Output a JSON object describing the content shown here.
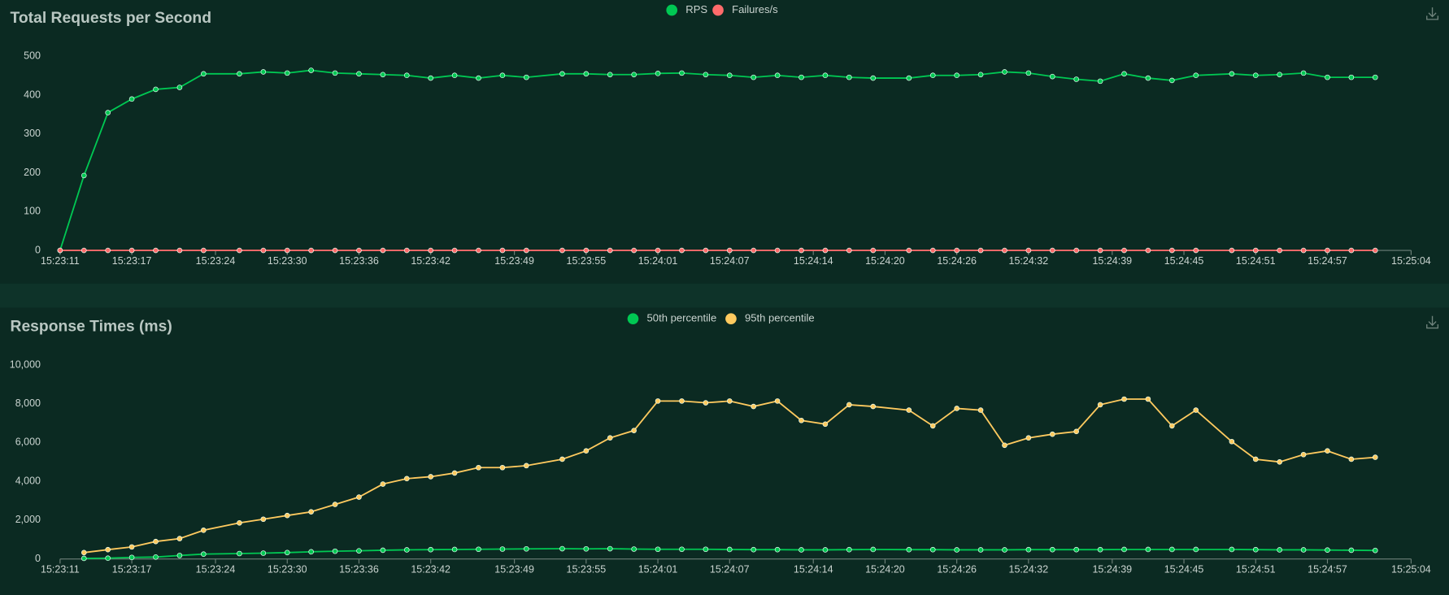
{
  "chart_data": [
    {
      "type": "line",
      "title": "Total Requests per Second",
      "x": [
        "15:23:11",
        "15:23:13",
        "15:23:15",
        "15:23:17",
        "15:23:19",
        "15:23:21",
        "15:23:23",
        "15:23:26",
        "15:23:28",
        "15:23:30",
        "15:23:32",
        "15:23:34",
        "15:23:36",
        "15:23:38",
        "15:23:40",
        "15:23:42",
        "15:23:44",
        "15:23:46",
        "15:23:48",
        "15:23:50",
        "15:23:53",
        "15:23:55",
        "15:23:57",
        "15:23:59",
        "15:24:01",
        "15:24:03",
        "15:24:05",
        "15:24:07",
        "15:24:09",
        "15:24:11",
        "15:24:13",
        "15:24:15",
        "15:24:17",
        "15:24:19",
        "15:24:22",
        "15:24:24",
        "15:24:26",
        "15:24:28",
        "15:24:30",
        "15:24:32",
        "15:24:34",
        "15:24:36",
        "15:24:38",
        "15:24:40",
        "15:24:42",
        "15:24:44",
        "15:24:46",
        "15:24:49",
        "15:24:51",
        "15:24:53",
        "15:24:55",
        "15:24:57",
        "15:24:59",
        "15:25:01"
      ],
      "xlim": [
        "15:23:11",
        "15:25:04"
      ],
      "xticks": [
        "15:23:11",
        "15:23:17",
        "15:23:24",
        "15:23:30",
        "15:23:36",
        "15:23:42",
        "15:23:49",
        "15:23:55",
        "15:24:01",
        "15:24:07",
        "15:24:14",
        "15:24:20",
        "15:24:26",
        "15:24:32",
        "15:24:39",
        "15:24:45",
        "15:24:51",
        "15:24:57",
        "15:25:04"
      ],
      "ylim": [
        0,
        500
      ],
      "yticks": [
        0,
        100,
        200,
        300,
        400,
        500
      ],
      "grid": false,
      "series": [
        {
          "name": "RPS",
          "color": "#00c853",
          "values": [
            0,
            193,
            355,
            390,
            415,
            420,
            455,
            455,
            460,
            457,
            464,
            457,
            455,
            453,
            451,
            444,
            451,
            444,
            451,
            446,
            455,
            455,
            453,
            453,
            456,
            457,
            453,
            451,
            446,
            451,
            446,
            451,
            446,
            444,
            444,
            451,
            451,
            453,
            460,
            457,
            448,
            441,
            436,
            455,
            444,
            438,
            451,
            455,
            451,
            453,
            457,
            446,
            446,
            446
          ]
        },
        {
          "name": "Failures/s",
          "color": "#ff6b6b",
          "values": [
            0,
            0,
            0,
            0,
            0,
            0,
            0,
            0,
            0,
            0,
            0,
            0,
            0,
            0,
            0,
            0,
            0,
            0,
            0,
            0,
            0,
            0,
            0,
            0,
            0,
            0,
            0,
            0,
            0,
            0,
            0,
            0,
            0,
            0,
            0,
            0,
            0,
            0,
            0,
            0,
            0,
            0,
            0,
            0,
            0,
            0,
            0,
            0,
            0,
            0,
            0,
            0,
            0,
            0
          ]
        }
      ]
    },
    {
      "type": "line",
      "title": "Response Times (ms)",
      "x": [
        "15:23:11",
        "15:23:13",
        "15:23:15",
        "15:23:17",
        "15:23:19",
        "15:23:21",
        "15:23:23",
        "15:23:26",
        "15:23:28",
        "15:23:30",
        "15:23:32",
        "15:23:34",
        "15:23:36",
        "15:23:38",
        "15:23:40",
        "15:23:42",
        "15:23:44",
        "15:23:46",
        "15:23:48",
        "15:23:50",
        "15:23:53",
        "15:23:55",
        "15:23:57",
        "15:23:59",
        "15:24:01",
        "15:24:03",
        "15:24:05",
        "15:24:07",
        "15:24:09",
        "15:24:11",
        "15:24:13",
        "15:24:15",
        "15:24:17",
        "15:24:19",
        "15:24:22",
        "15:24:24",
        "15:24:26",
        "15:24:28",
        "15:24:30",
        "15:24:32",
        "15:24:34",
        "15:24:36",
        "15:24:38",
        "15:24:40",
        "15:24:42",
        "15:24:44",
        "15:24:46",
        "15:24:49",
        "15:24:51",
        "15:24:53",
        "15:24:55",
        "15:24:57",
        "15:24:59",
        "15:25:01"
      ],
      "xlim": [
        "15:23:11",
        "15:25:04"
      ],
      "xticks": [
        "15:23:11",
        "15:23:17",
        "15:23:24",
        "15:23:30",
        "15:23:36",
        "15:23:42",
        "15:23:49",
        "15:23:55",
        "15:24:01",
        "15:24:07",
        "15:24:14",
        "15:24:20",
        "15:24:26",
        "15:24:32",
        "15:24:39",
        "15:24:45",
        "15:24:51",
        "15:24:57",
        "15:25:04"
      ],
      "ylim": [
        0,
        10000
      ],
      "yticks": [
        0,
        {
          "value": 2000,
          "label": "2,000"
        },
        {
          "value": 4000,
          "label": "4,000"
        },
        {
          "value": 6000,
          "label": "6,000"
        },
        {
          "value": 8000,
          "label": "8,000"
        },
        {
          "value": 10000,
          "label": "10,000"
        }
      ],
      "grid": false,
      "series": [
        {
          "name": "50th percentile",
          "color": "#00c853",
          "values": [
            null,
            30,
            40,
            80,
            100,
            180,
            250,
            280,
            300,
            330,
            370,
            400,
            420,
            450,
            470,
            480,
            490,
            500,
            510,
            520,
            530,
            520,
            530,
            510,
            500,
            500,
            500,
            490,
            480,
            480,
            470,
            470,
            480,
            490,
            480,
            480,
            470,
            470,
            470,
            480,
            480,
            480,
            480,
            490,
            490,
            490,
            490,
            490,
            480,
            470,
            470,
            460,
            450,
            440
          ]
        },
        {
          "name": "95th percentile",
          "color": "#ffca5f",
          "values": [
            null,
            330,
            480,
            620,
            900,
            1050,
            1480,
            1860,
            2050,
            2240,
            2430,
            2810,
            3190,
            3860,
            4140,
            4240,
            4430,
            4710,
            4710,
            4810,
            5140,
            5570,
            6240,
            6620,
            8140,
            8140,
            8050,
            8140,
            7860,
            8140,
            7140,
            6950,
            7950,
            7860,
            7670,
            6860,
            7760,
            7670,
            5860,
            6240,
            6430,
            6570,
            7950,
            8240,
            8240,
            6860,
            7670,
            6050,
            5140,
            5000,
            5380,
            5570,
            5140,
            5240
          ]
        }
      ]
    }
  ]
}
